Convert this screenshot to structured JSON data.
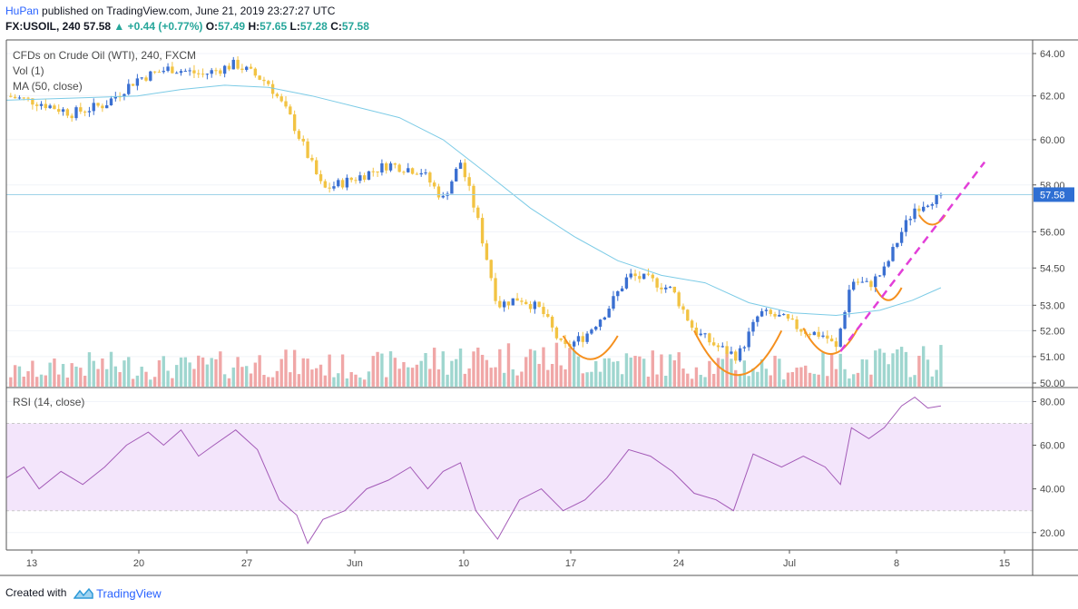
{
  "header": {
    "author": "HuPan",
    "published_text": "published on TradingView.com, June 21, 2019 23:27:27 UTC",
    "symbol": "FX:USOIL, 240",
    "last": "57.58",
    "change": "+0.44 (+0.77%)",
    "o_label": "O:",
    "o_value": "57.49",
    "h_label": "H:",
    "h_value": "57.65",
    "l_label": "L:",
    "l_value": "57.28",
    "c_label": "C:",
    "c_value": "57.58"
  },
  "legend": {
    "title": "CFDs on Crude Oil (WTI), 240, FXCM",
    "vol": "Vol (1)",
    "ma": "MA (50, close)",
    "rsi": "RSI (14, close)"
  },
  "footer": {
    "created_with": "Created with",
    "brand": "TradingView"
  },
  "colors": {
    "up_candle": "#3a6fd1",
    "down_candle": "#f2c343",
    "vol_up": "#9fd6cf",
    "vol_down": "#f0a7a7",
    "ma": "#7ccbe6",
    "rsi": "#a35ab7",
    "rsi_band": "#f3e5fb",
    "annotation_arc": "#f5901e",
    "trend_line": "#e23fd8",
    "price_line": "#9fd3e8",
    "price_tag": "#2f6fd3"
  },
  "chart_data": {
    "type": "candlestick",
    "timeframe": "240",
    "x_tick_labels": [
      "13",
      "20",
      "27",
      "Jun",
      "10",
      "17",
      "24",
      "Jul",
      "8",
      "15"
    ],
    "price_axis": {
      "ticks": [
        "64.00",
        "62.00",
        "60.00",
        "58.00",
        "56.00",
        "54.50",
        "53.00",
        "52.00",
        "51.00",
        "50.00"
      ],
      "log_scale": true,
      "last_price_label": "57.58",
      "last_price": 57.58
    },
    "rsi_axis": {
      "ticks": [
        "80.00",
        "60.00",
        "40.00",
        "20.00"
      ],
      "range": [
        12,
        86
      ],
      "band": [
        30,
        70
      ]
    },
    "ohlc_last": {
      "open": 57.49,
      "high": 57.65,
      "low": 57.28,
      "close": 57.58
    },
    "close_path": [
      {
        "t": 0,
        "c": 62.0
      },
      {
        "t": 1.5,
        "c": 61.7
      },
      {
        "t": 3,
        "c": 61.2
      },
      {
        "t": 4.5,
        "c": 61.6
      },
      {
        "t": 6,
        "c": 62.8
      },
      {
        "t": 7.5,
        "c": 63.3
      },
      {
        "t": 9,
        "c": 63.0
      },
      {
        "t": 10.5,
        "c": 63.5
      },
      {
        "t": 12,
        "c": 62.6
      },
      {
        "t": 13,
        "c": 61.0
      },
      {
        "t": 14.5,
        "c": 57.8
      },
      {
        "t": 16,
        "c": 58.3
      },
      {
        "t": 17.5,
        "c": 58.9
      },
      {
        "t": 19,
        "c": 58.6
      },
      {
        "t": 20,
        "c": 57.4
      },
      {
        "t": 20.8,
        "c": 59.0
      },
      {
        "t": 21.5,
        "c": 56.8
      },
      {
        "t": 22.5,
        "c": 53.0
      },
      {
        "t": 23.5,
        "c": 53.3
      },
      {
        "t": 24.5,
        "c": 52.8
      },
      {
        "t": 25.5,
        "c": 51.3
      },
      {
        "t": 26.5,
        "c": 51.8
      },
      {
        "t": 27.5,
        "c": 52.8
      },
      {
        "t": 28.5,
        "c": 54.2
      },
      {
        "t": 29.5,
        "c": 54.0
      },
      {
        "t": 30.5,
        "c": 53.6
      },
      {
        "t": 31.5,
        "c": 52.0
      },
      {
        "t": 32.5,
        "c": 51.4
      },
      {
        "t": 33.5,
        "c": 51.0
      },
      {
        "t": 34.5,
        "c": 52.7
      },
      {
        "t": 35.5,
        "c": 52.5
      },
      {
        "t": 36.5,
        "c": 52.0
      },
      {
        "t": 37.5,
        "c": 51.8
      },
      {
        "t": 38,
        "c": 51.3
      },
      {
        "t": 38.7,
        "c": 54.0
      },
      {
        "t": 39.5,
        "c": 53.8
      },
      {
        "t": 40.2,
        "c": 54.4
      },
      {
        "t": 41,
        "c": 56.0
      },
      {
        "t": 41.6,
        "c": 57.0
      },
      {
        "t": 42.2,
        "c": 57.3
      },
      {
        "t": 42.8,
        "c": 57.58
      }
    ],
    "volume_path": [
      {
        "t": 0,
        "v": 0.25
      },
      {
        "t": 4,
        "v": 0.4
      },
      {
        "t": 8,
        "v": 0.35
      },
      {
        "t": 12,
        "v": 0.45
      },
      {
        "t": 16,
        "v": 0.35
      },
      {
        "t": 20,
        "v": 0.5
      },
      {
        "t": 24,
        "v": 0.55
      },
      {
        "t": 28,
        "v": 0.45
      },
      {
        "t": 32,
        "v": 0.4
      },
      {
        "t": 36,
        "v": 0.35
      },
      {
        "t": 40,
        "v": 0.45
      },
      {
        "t": 42.8,
        "v": 0.5
      }
    ],
    "ma50_path": [
      {
        "t": 0,
        "v": 61.8
      },
      {
        "t": 3,
        "v": 61.9
      },
      {
        "t": 6,
        "v": 62.0
      },
      {
        "t": 8,
        "v": 62.3
      },
      {
        "t": 10,
        "v": 62.5
      },
      {
        "t": 12,
        "v": 62.4
      },
      {
        "t": 14,
        "v": 62.0
      },
      {
        "t": 16,
        "v": 61.5
      },
      {
        "t": 18,
        "v": 61.0
      },
      {
        "t": 20,
        "v": 60.0
      },
      {
        "t": 22,
        "v": 58.5
      },
      {
        "t": 24,
        "v": 57.0
      },
      {
        "t": 26,
        "v": 55.8
      },
      {
        "t": 28,
        "v": 54.8
      },
      {
        "t": 30,
        "v": 54.2
      },
      {
        "t": 32,
        "v": 53.9
      },
      {
        "t": 34,
        "v": 53.1
      },
      {
        "t": 36,
        "v": 52.7
      },
      {
        "t": 38,
        "v": 52.6
      },
      {
        "t": 40,
        "v": 52.8
      },
      {
        "t": 41.5,
        "v": 53.2
      },
      {
        "t": 42.8,
        "v": 53.7
      }
    ],
    "rsi_path": [
      {
        "t": 0,
        "v": 45
      },
      {
        "t": 0.8,
        "v": 50
      },
      {
        "t": 1.5,
        "v": 40
      },
      {
        "t": 2.5,
        "v": 48
      },
      {
        "t": 3.5,
        "v": 42
      },
      {
        "t": 4.5,
        "v": 50
      },
      {
        "t": 5.5,
        "v": 60
      },
      {
        "t": 6.5,
        "v": 66
      },
      {
        "t": 7.2,
        "v": 60
      },
      {
        "t": 8,
        "v": 67
      },
      {
        "t": 8.8,
        "v": 55
      },
      {
        "t": 9.5,
        "v": 60
      },
      {
        "t": 10.5,
        "v": 67
      },
      {
        "t": 11.5,
        "v": 58
      },
      {
        "t": 12.5,
        "v": 35
      },
      {
        "t": 13.3,
        "v": 28
      },
      {
        "t": 13.8,
        "v": 15
      },
      {
        "t": 14.5,
        "v": 26
      },
      {
        "t": 15.5,
        "v": 30
      },
      {
        "t": 16.5,
        "v": 40
      },
      {
        "t": 17.5,
        "v": 44
      },
      {
        "t": 18.5,
        "v": 50
      },
      {
        "t": 19.3,
        "v": 40
      },
      {
        "t": 20,
        "v": 48
      },
      {
        "t": 20.8,
        "v": 52
      },
      {
        "t": 21.5,
        "v": 30
      },
      {
        "t": 22.5,
        "v": 17
      },
      {
        "t": 23.5,
        "v": 35
      },
      {
        "t": 24.5,
        "v": 40
      },
      {
        "t": 25.5,
        "v": 30
      },
      {
        "t": 26.5,
        "v": 35
      },
      {
        "t": 27.5,
        "v": 45
      },
      {
        "t": 28.5,
        "v": 58
      },
      {
        "t": 29.5,
        "v": 55
      },
      {
        "t": 30.5,
        "v": 48
      },
      {
        "t": 31.5,
        "v": 38
      },
      {
        "t": 32.5,
        "v": 35
      },
      {
        "t": 33.3,
        "v": 30
      },
      {
        "t": 34.2,
        "v": 56
      },
      {
        "t": 35.5,
        "v": 50
      },
      {
        "t": 36.5,
        "v": 55
      },
      {
        "t": 37.5,
        "v": 50
      },
      {
        "t": 38.2,
        "v": 42
      },
      {
        "t": 38.7,
        "v": 68
      },
      {
        "t": 39.5,
        "v": 63
      },
      {
        "t": 40.2,
        "v": 68
      },
      {
        "t": 41,
        "v": 78
      },
      {
        "t": 41.6,
        "v": 82
      },
      {
        "t": 42.2,
        "v": 77
      },
      {
        "t": 42.8,
        "v": 78
      }
    ],
    "annotations": {
      "arcs": [
        {
          "t0": 25.5,
          "t1": 28.0,
          "top": 51.8,
          "bottom": 50.9
        },
        {
          "t0": 31.5,
          "t1": 35.5,
          "top": 52.0,
          "bottom": 50.3
        },
        {
          "t0": 36.5,
          "t1": 39.0,
          "top": 52.1,
          "bottom": 51.1
        },
        {
          "t0": 39.8,
          "t1": 41.0,
          "top": 53.7,
          "bottom": 53.2
        },
        {
          "t0": 41.8,
          "t1": 43.0,
          "top": 56.7,
          "bottom": 56.3
        }
      ],
      "trend_line": {
        "t0": 38.2,
        "p0": 51.2,
        "t1": 44.8,
        "p1": 59.0,
        "style": "dashed"
      }
    }
  }
}
